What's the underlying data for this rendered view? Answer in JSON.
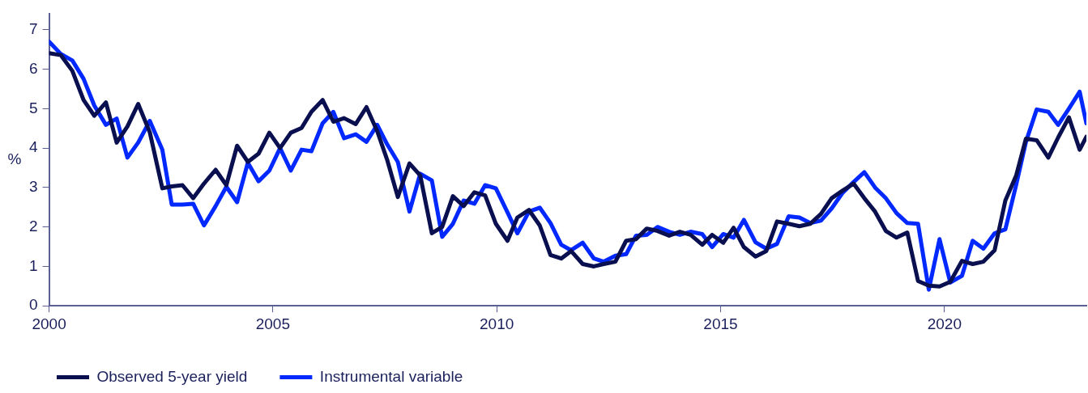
{
  "chart_data": {
    "type": "line",
    "ylabel": "%",
    "x": [
      2000.0,
      2000.26,
      2000.52,
      2000.77,
      2001.01,
      2001.27,
      2001.51,
      2001.75,
      2001.99,
      2002.25,
      2002.53,
      2002.74,
      2002.98,
      2003.22,
      2003.46,
      2003.72,
      2003.96,
      2004.2,
      2004.44,
      2004.68,
      2004.92,
      2005.16,
      2005.4,
      2005.64,
      2005.86,
      2006.11,
      2006.35,
      2006.59,
      2006.85,
      2007.09,
      2007.33,
      2007.55,
      2007.79,
      2008.05,
      2008.29,
      2008.55,
      2008.78,
      2009.02,
      2009.26,
      2009.5,
      2009.74,
      2009.98,
      2010.24,
      2010.46,
      2010.72,
      2010.96,
      2011.2,
      2011.44,
      2011.66,
      2011.92,
      2012.17,
      2012.39,
      2012.65,
      2012.89,
      2013.11,
      2013.35,
      2013.59,
      2013.85,
      2014.09,
      2014.33,
      2014.59,
      2014.81,
      2015.06,
      2015.29,
      2015.52,
      2015.78,
      2016.02,
      2016.26,
      2016.52,
      2016.76,
      2017.0,
      2017.24,
      2017.48,
      2017.72,
      2017.97,
      2018.21,
      2018.45,
      2018.69,
      2018.93,
      2019.17,
      2019.41,
      2019.65,
      2019.89,
      2020.13,
      2020.39,
      2020.63,
      2020.87,
      2021.12,
      2021.36,
      2021.6,
      2021.82,
      2022.06,
      2022.32,
      2022.54,
      2022.78,
      2023.02,
      2023.17
    ],
    "series": [
      {
        "name": "Observed 5-year yield",
        "color": "#0a0f4f",
        "values": [
          6.41,
          6.36,
          5.96,
          5.22,
          4.82,
          5.16,
          4.14,
          4.55,
          5.12,
          4.4,
          2.98,
          3.03,
          3.06,
          2.73,
          3.1,
          3.45,
          3.06,
          4.06,
          3.65,
          3.86,
          4.39,
          4.0,
          4.39,
          4.51,
          4.92,
          5.22,
          4.67,
          4.76,
          4.61,
          5.04,
          4.43,
          3.71,
          2.76,
          3.61,
          3.31,
          1.84,
          2.0,
          2.78,
          2.53,
          2.88,
          2.8,
          2.08,
          1.65,
          2.24,
          2.43,
          2.04,
          1.29,
          1.2,
          1.39,
          1.06,
          1.0,
          1.06,
          1.12,
          1.65,
          1.69,
          1.96,
          1.9,
          1.78,
          1.88,
          1.8,
          1.55,
          1.8,
          1.6,
          1.98,
          1.49,
          1.25,
          1.39,
          2.14,
          2.08,
          2.02,
          2.08,
          2.33,
          2.73,
          2.92,
          3.1,
          2.73,
          2.39,
          1.9,
          1.73,
          1.86,
          0.63,
          0.51,
          0.49,
          0.61,
          1.14,
          1.06,
          1.12,
          1.41,
          2.67,
          3.3,
          4.24,
          4.2,
          3.76,
          4.27,
          4.78,
          3.96,
          4.29
        ]
      },
      {
        "name": "Instrumental variable",
        "color": "#0028ff",
        "values": [
          6.7,
          6.39,
          6.22,
          5.76,
          5.08,
          4.59,
          4.75,
          3.76,
          4.14,
          4.69,
          3.96,
          2.57,
          2.57,
          2.59,
          2.04,
          2.53,
          3.02,
          2.63,
          3.63,
          3.16,
          3.43,
          4.0,
          3.43,
          3.96,
          3.92,
          4.63,
          4.92,
          4.25,
          4.35,
          4.16,
          4.59,
          4.1,
          3.65,
          2.39,
          3.35,
          3.18,
          1.75,
          2.08,
          2.67,
          2.59,
          3.06,
          2.98,
          2.37,
          1.84,
          2.39,
          2.49,
          2.1,
          1.55,
          1.41,
          1.6,
          1.2,
          1.12,
          1.27,
          1.31,
          1.78,
          1.8,
          2.0,
          1.88,
          1.8,
          1.88,
          1.82,
          1.49,
          1.82,
          1.73,
          2.18,
          1.61,
          1.45,
          1.57,
          2.27,
          2.24,
          2.1,
          2.16,
          2.47,
          2.86,
          3.14,
          3.39,
          3.0,
          2.73,
          2.35,
          2.1,
          2.08,
          0.41,
          1.69,
          0.59,
          0.76,
          1.65,
          1.45,
          1.84,
          1.94,
          3.06,
          4.16,
          4.98,
          4.92,
          4.59,
          5.0,
          5.43,
          4.63
        ]
      }
    ],
    "xlim": [
      2000,
      2023.17
    ],
    "xticks": [
      2000,
      2005,
      2010,
      2015,
      2020
    ],
    "ylim": [
      0,
      7.4
    ],
    "yticks": [
      0,
      1,
      2,
      3,
      4,
      5,
      6,
      7
    ],
    "grid": false,
    "legend": "bottom left",
    "marker": "none",
    "line_style": "solid"
  }
}
